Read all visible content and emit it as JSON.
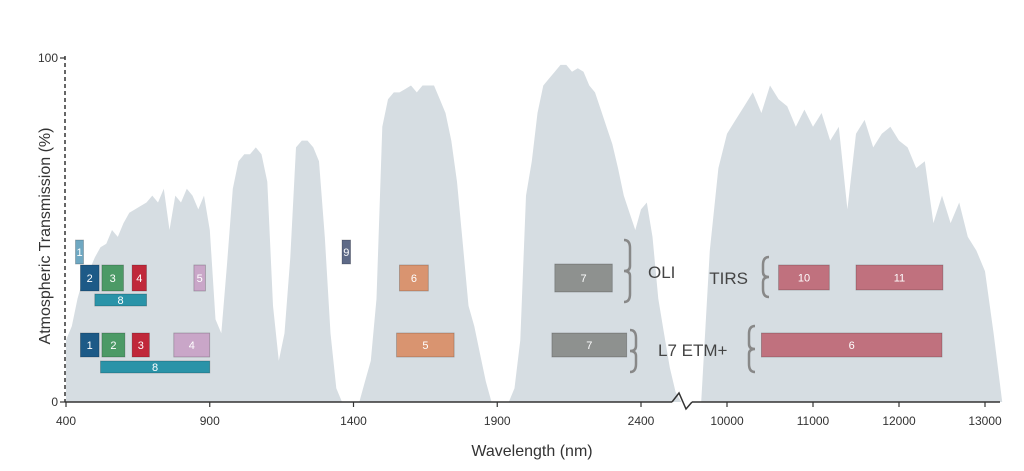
{
  "chart_data": {
    "type": "area",
    "title": "",
    "xlabel": "Wavelength (nm)",
    "ylabel": "Atmospheric Transmission (%)",
    "ylim": [
      0,
      100
    ],
    "y_ticks": [
      "0",
      "100"
    ],
    "x_tick_labels": [
      "400",
      "900",
      "1400",
      "1900",
      "2400",
      "10000",
      "11000",
      "12000",
      "13000"
    ],
    "x_axis_break": "between 2600 nm and 9700 nm",
    "series": [
      {
        "segment": "reflective",
        "x": [
          400,
          420,
          440,
          460,
          480,
          500,
          520,
          540,
          560,
          580,
          600,
          620,
          640,
          660,
          680,
          700,
          720,
          740,
          760,
          780,
          800,
          820,
          840,
          860,
          880,
          900,
          920,
          940,
          960,
          980,
          1000,
          1020,
          1040,
          1060,
          1080,
          1100,
          1120,
          1140,
          1160,
          1180,
          1200,
          1220,
          1240,
          1260,
          1280,
          1300,
          1320,
          1340,
          1360,
          1380,
          1400,
          1420,
          1440,
          1460,
          1480,
          1500,
          1520,
          1540,
          1560,
          1580,
          1600,
          1620,
          1640,
          1660,
          1680,
          1700,
          1720,
          1740,
          1760,
          1780,
          1800,
          1820,
          1840,
          1860,
          1880,
          1900,
          1920,
          1940,
          1960,
          1980,
          2000,
          2020,
          2040,
          2060,
          2080,
          2100,
          2120,
          2140,
          2160,
          2180,
          2200,
          2220,
          2240,
          2260,
          2280,
          2300,
          2320,
          2340,
          2360,
          2380,
          2400,
          2420,
          2440,
          2460,
          2480,
          2500,
          2520,
          2540,
          2560,
          2580,
          2600
        ],
        "y": [
          18,
          22,
          30,
          36,
          38,
          42,
          45,
          46,
          50,
          48,
          52,
          55,
          56,
          57,
          58,
          60,
          58,
          62,
          50,
          60,
          58,
          62,
          60,
          56,
          60,
          50,
          24,
          20,
          40,
          62,
          70,
          72,
          72,
          74,
          72,
          64,
          28,
          12,
          20,
          42,
          74,
          76,
          76,
          74,
          70,
          48,
          20,
          4,
          0,
          0,
          0,
          0,
          6,
          12,
          30,
          80,
          88,
          90,
          90,
          91,
          92,
          90,
          92,
          92,
          92,
          88,
          84,
          76,
          64,
          46,
          28,
          22,
          14,
          6,
          0,
          0,
          0,
          0,
          4,
          18,
          60,
          70,
          84,
          92,
          94,
          96,
          98,
          98,
          96,
          97,
          96,
          92,
          90,
          85,
          80,
          75,
          68,
          60,
          55,
          50,
          56,
          58,
          48,
          30,
          20,
          10,
          3,
          0,
          0,
          0,
          0
        ]
      },
      {
        "segment": "thermal",
        "x": [
          9700,
          9800,
          9900,
          10000,
          10100,
          10200,
          10300,
          10400,
          10500,
          10600,
          10700,
          10800,
          10900,
          11000,
          11100,
          11200,
          11300,
          11400,
          11500,
          11600,
          11700,
          11800,
          11900,
          12000,
          12100,
          12200,
          12300,
          12400,
          12500,
          12600,
          12700,
          12800,
          12900,
          13000,
          13100,
          13200
        ],
        "y": [
          0,
          44,
          68,
          78,
          82,
          86,
          90,
          84,
          92,
          88,
          86,
          80,
          85,
          80,
          84,
          76,
          80,
          56,
          78,
          82,
          74,
          78,
          80,
          76,
          74,
          68,
          70,
          52,
          60,
          52,
          58,
          48,
          44,
          38,
          20,
          0
        ]
      }
    ],
    "groups": [
      {
        "name": "OLI",
        "bands": [
          {
            "label": "1",
            "range": [
              433,
              453
            ],
            "color": "#6fa8c2"
          },
          {
            "label": "2",
            "range": [
              450,
              515
            ],
            "color": "#1d5a87"
          },
          {
            "label": "3",
            "range": [
              525,
              600
            ],
            "color": "#4c9a66"
          },
          {
            "label": "4",
            "range": [
              630,
              680
            ],
            "color": "#c0283a"
          },
          {
            "label": "8",
            "range": [
              500,
              680
            ],
            "color": "#2a93a8"
          },
          {
            "label": "5",
            "range": [
              845,
              885
            ],
            "color": "#c9a6c8"
          },
          {
            "label": "9",
            "range": [
              1360,
              1390
            ],
            "color": "#5e6a87"
          },
          {
            "label": "6",
            "range": [
              1560,
              1660
            ],
            "color": "#d99470"
          },
          {
            "label": "7",
            "range": [
              2100,
              2300
            ],
            "color": "#8e918f"
          }
        ]
      },
      {
        "name": "L7 ETM+",
        "bands": [
          {
            "label": "1",
            "range": [
              450,
              515
            ],
            "color": "#1d5a87"
          },
          {
            "label": "2",
            "range": [
              525,
              605
            ],
            "color": "#4c9a66"
          },
          {
            "label": "3",
            "range": [
              630,
              690
            ],
            "color": "#c0283a"
          },
          {
            "label": "4",
            "range": [
              775,
              900
            ],
            "color": "#c9a6c8"
          },
          {
            "label": "8",
            "range": [
              520,
              900
            ],
            "color": "#2a93a8"
          },
          {
            "label": "5",
            "range": [
              1550,
              1750
            ],
            "color": "#d99470"
          },
          {
            "label": "7",
            "range": [
              2090,
              2350
            ],
            "color": "#8e918f"
          }
        ]
      },
      {
        "name": "TIRS",
        "bands": [
          {
            "label": "10",
            "range": [
              10600,
              11190
            ],
            "color": "#c0717e"
          },
          {
            "label": "11",
            "range": [
              11500,
              12510
            ],
            "color": "#c0717e"
          }
        ]
      },
      {
        "name": "L7 ETM+",
        "bands": [
          {
            "label": "6",
            "range": [
              10400,
              12500
            ],
            "color": "#c0717e"
          }
        ]
      }
    ],
    "legend": "none",
    "grid": false
  }
}
